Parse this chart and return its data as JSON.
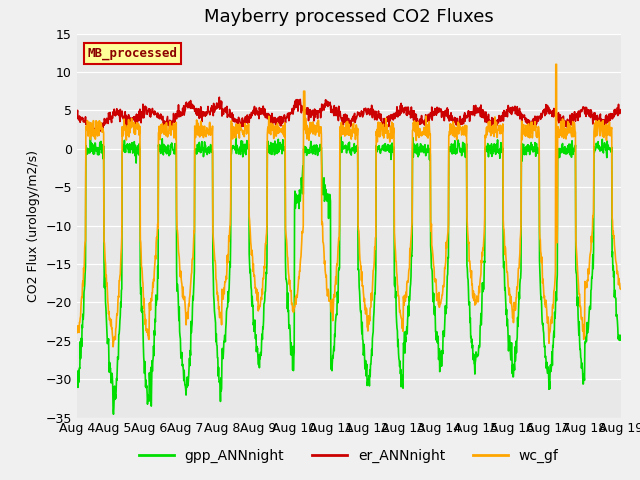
{
  "title": "Mayberry processed CO2 Fluxes",
  "ylabel": "CO2 Flux (urology/m2/s)",
  "xlabel": "",
  "ylim": [
    -35,
    15
  ],
  "xlim": [
    0,
    15
  ],
  "yticks": [
    -35,
    -30,
    -25,
    -20,
    -15,
    -10,
    -5,
    0,
    5,
    10,
    15
  ],
  "xtick_labels": [
    "Aug 4",
    "Aug 5",
    "Aug 6",
    "Aug 7",
    "Aug 8",
    "Aug 9",
    "Aug 10",
    "Aug 11",
    "Aug 12",
    "Aug 13",
    "Aug 14",
    "Aug 15",
    "Aug 16",
    "Aug 17",
    "Aug 18",
    "Aug 19"
  ],
  "xtick_positions": [
    0,
    1,
    2,
    3,
    4,
    5,
    6,
    7,
    8,
    9,
    10,
    11,
    12,
    13,
    14,
    15
  ],
  "bg_color": "#e8e8e8",
  "fig_color": "#f0f0f0",
  "line_green": "#00dd00",
  "line_red": "#cc0000",
  "line_orange": "#ffa500",
  "legend_label": "MB_processed",
  "legend_bg": "#ffff99",
  "legend_edge": "#cc0000",
  "sublabel_fontsize": 9,
  "title_fontsize": 13,
  "linewidth": 1.2,
  "gpp_depths": [
    30,
    33,
    30,
    31,
    26,
    28,
    7,
    28,
    31,
    26,
    28,
    27,
    29,
    30,
    25
  ],
  "wc_depths": [
    26,
    27,
    22,
    24,
    21,
    23,
    22,
    23,
    25,
    22,
    22,
    22,
    24,
    26,
    20
  ],
  "er_bases": [
    2.5,
    3.5,
    3.5,
    4.5,
    3.5,
    3.5,
    4.5,
    3.5,
    3.5,
    3.5,
    3.5,
    3.5,
    3.5,
    3.5,
    3.5
  ]
}
